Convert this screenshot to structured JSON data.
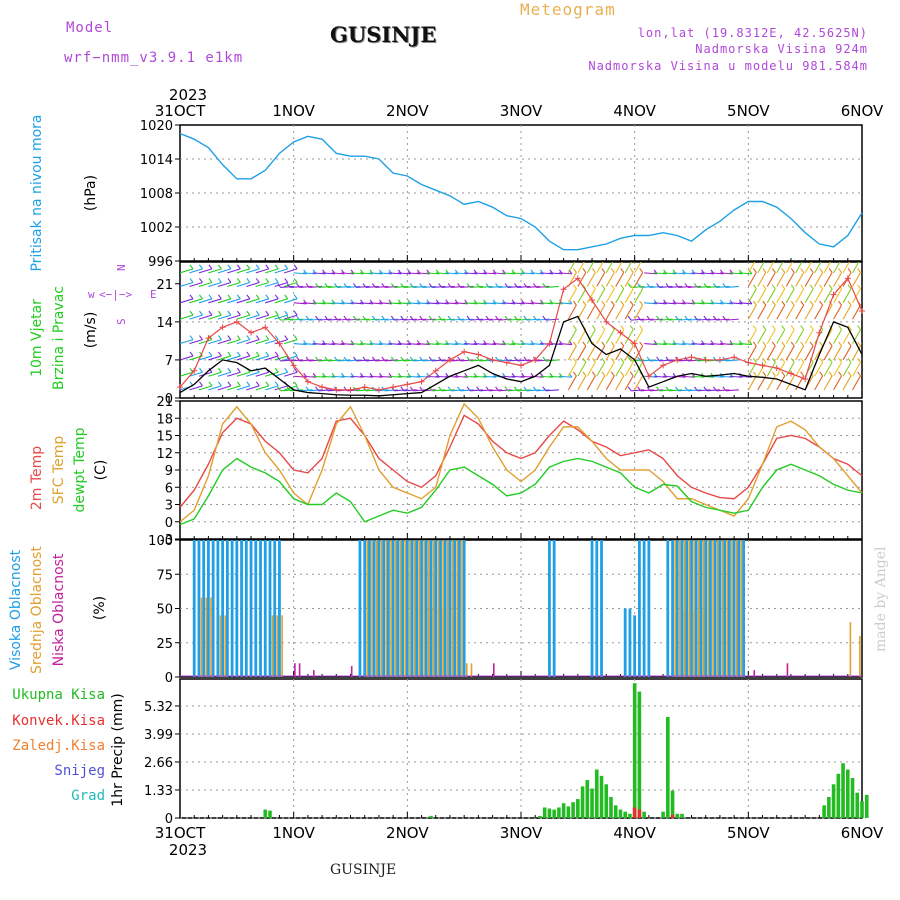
{
  "header": {
    "model_label": "Model",
    "model_name": "wrf−nmm_v3.9.1  e1km",
    "title": "GUSINJE",
    "product": "Meteogram",
    "lonlat": "lon,lat (19.8312E, 42.5625N)",
    "elevation": "Nadmorska Visina 924m",
    "model_elevation": "Nadmorska Visina u modelu 981.584m",
    "watermark": "made by Angel",
    "footer": "GUSINJE",
    "year": "2023"
  },
  "colors": {
    "pressure": "#1ea0e6",
    "wind_text": "#22cc22",
    "temp2m": "#e84848",
    "sfc": "#e0a030",
    "dewpt": "#22cc22",
    "high_cloud": "#1e9fe6",
    "mid_cloud": "#e0a030",
    "low_cloud": "#c0209a",
    "total_precip": "#22bb22",
    "conv_precip": "#e83030",
    "frozen_precip": "#f08030",
    "snow": "#5050d8",
    "graupel": "#22b8b8",
    "dir_label": "#b048d8",
    "header_purple": "#b048d8"
  },
  "chart_data": [
    {
      "id": "pressure",
      "type": "line",
      "ylabel": [
        "Pritisak na nivou mora",
        "(hPa)"
      ],
      "x_ticks": [
        "31OCT",
        "1NOV",
        "2NOV",
        "3NOV",
        "4NOV",
        "5NOV",
        "6NOV"
      ],
      "ylim": [
        996,
        1020
      ],
      "yticks": [
        996,
        1002,
        1008,
        1014,
        1020
      ],
      "x": [
        0,
        3,
        6,
        9,
        12,
        15,
        18,
        21,
        24,
        27,
        30,
        33,
        36,
        39,
        42,
        45,
        48,
        51,
        54,
        57,
        60,
        63,
        66,
        69,
        72,
        75,
        78,
        81,
        84,
        87,
        90,
        93,
        96,
        99,
        102,
        105,
        108,
        111,
        114,
        117,
        120,
        123,
        126,
        129,
        132,
        135,
        138,
        141,
        144
      ],
      "series": [
        {
          "name": "",
          "values": [
            1018.5,
            1017.5,
            1016,
            1013,
            1010.5,
            1010.5,
            1012,
            1015,
            1017,
            1018,
            1017.5,
            1015,
            1014.5,
            1014.5,
            1014,
            1011.5,
            1011,
            1009.5,
            1008.5,
            1007.5,
            1006,
            1006.5,
            1005.5,
            1004,
            1003.5,
            1002,
            999.5,
            998,
            998,
            998.5,
            999,
            1000,
            1000.5,
            1000.5,
            1001,
            1000.5,
            999.5,
            1001.5,
            1003,
            1005,
            1006.5,
            1006.5,
            1005.5,
            1003.5,
            1001,
            999,
            998.5,
            1000.5,
            1004.5
          ]
        }
      ]
    },
    {
      "id": "wind",
      "type": "line",
      "ylabel": [
        "10m Vjetar",
        "Brzina i Pravac",
        "(m/s)"
      ],
      "direction_legend": [
        "w",
        "<−|−>",
        "E",
        "N",
        "S"
      ],
      "ylim": [
        0,
        25
      ],
      "yticks": [
        0,
        7,
        14,
        21
      ],
      "x": [
        0,
        3,
        6,
        9,
        12,
        15,
        18,
        21,
        24,
        27,
        30,
        33,
        36,
        39,
        42,
        45,
        48,
        51,
        54,
        57,
        60,
        63,
        66,
        69,
        72,
        75,
        78,
        81,
        84,
        87,
        90,
        93,
        96,
        99,
        102,
        105,
        108,
        111,
        114,
        117,
        120,
        123,
        126,
        129,
        132,
        135,
        138,
        141,
        144
      ],
      "series": [
        {
          "name": "",
          "values": [
            1,
            2.5,
            5,
            7,
            6.5,
            5,
            5.5,
            3.5,
            1.5,
            1,
            0.8,
            0.6,
            0.5,
            0.5,
            0.4,
            0.6,
            0.8,
            1,
            2.5,
            4,
            5,
            6,
            4.5,
            3.5,
            3,
            4,
            6,
            14,
            15,
            10,
            8,
            9,
            7,
            2,
            3,
            4,
            4.5,
            4,
            4.2,
            4.5,
            4,
            3.8,
            3.5,
            2.5,
            1.5,
            8,
            14,
            13,
            8
          ]
        },
        {
          "name": "",
          "values": [
            2,
            5,
            11,
            13,
            14,
            12,
            13,
            10,
            6,
            3,
            2,
            1.5,
            1.5,
            2,
            1.5,
            2,
            2.5,
            3,
            5,
            7,
            8.5,
            8,
            7,
            6.5,
            6,
            7,
            10,
            20,
            22,
            18,
            14,
            12,
            10,
            4,
            6,
            7,
            7.5,
            7,
            7,
            7.5,
            6.5,
            6,
            5.5,
            4.5,
            3.5,
            12,
            19,
            22,
            16
          ]
        }
      ],
      "barb_rows": [
        23,
        20.5,
        17.5,
        14.5,
        10,
        7,
        4,
        1.5
      ]
    },
    {
      "id": "temperature",
      "type": "line",
      "ylabel": [
        "2m Temp",
        "SFC Temp",
        "dewpt Temp",
        "(C)"
      ],
      "ylim": [
        -3,
        21
      ],
      "yticks": [
        -3,
        0,
        3,
        6,
        9,
        12,
        15,
        18,
        21
      ],
      "x": [
        0,
        3,
        6,
        9,
        12,
        15,
        18,
        21,
        24,
        27,
        30,
        33,
        36,
        39,
        42,
        45,
        48,
        51,
        54,
        57,
        60,
        63,
        66,
        69,
        72,
        75,
        78,
        81,
        84,
        87,
        90,
        93,
        96,
        99,
        102,
        105,
        108,
        111,
        114,
        117,
        120,
        123,
        126,
        129,
        132,
        135,
        138,
        141,
        144
      ],
      "series": [
        {
          "name": "2m Temp",
          "values": [
            2.5,
            5.5,
            10,
            15.5,
            18,
            17,
            14,
            12,
            9,
            8.5,
            11,
            17.5,
            18,
            15,
            11,
            9,
            7,
            6,
            8,
            13,
            18.5,
            17,
            14,
            12,
            11,
            12,
            15,
            17.5,
            16,
            14,
            13,
            11.5,
            12,
            12.5,
            11,
            8,
            6,
            5,
            4.2,
            4,
            6,
            10,
            14.5,
            15,
            14.5,
            13,
            11,
            10,
            8
          ]
        },
        {
          "name": "SFC Temp",
          "values": [
            0,
            2,
            8,
            17,
            20,
            17,
            12,
            9,
            5,
            3,
            9,
            17,
            20,
            15,
            9,
            6,
            5,
            4,
            6,
            15,
            20.5,
            18,
            13,
            9,
            7,
            9,
            13,
            16.5,
            16.5,
            14,
            11,
            9,
            9,
            9,
            7,
            4,
            4,
            3,
            2,
            1,
            4,
            10,
            16.5,
            17.5,
            16,
            13,
            11,
            8,
            5
          ]
        },
        {
          "name": "dewpt Temp",
          "values": [
            -0.5,
            0.5,
            4.5,
            9,
            11,
            9.5,
            8.5,
            7,
            4,
            3,
            3,
            5,
            3.5,
            0,
            1,
            2,
            1.5,
            2.5,
            5.5,
            9,
            9.5,
            8,
            6.5,
            4.5,
            5,
            6.5,
            9.5,
            10.5,
            11,
            10.5,
            9.5,
            8.5,
            6,
            5,
            6.5,
            6.2,
            3.5,
            2.5,
            2,
            1.5,
            2,
            6,
            9,
            10,
            9,
            8,
            6.5,
            5.5,
            5
          ]
        }
      ]
    },
    {
      "id": "cloud",
      "type": "bar",
      "ylabel": [
        "Visoka Oblacnost",
        "Srednja Oblacnost",
        "Niska Oblacnost",
        "(%)"
      ],
      "ylim": [
        0,
        100
      ],
      "yticks": [
        0,
        25,
        50,
        75,
        100
      ],
      "bars": [
        {
          "name": "Visoka Oblacnost",
          "ranges": [
            [
              3,
              21,
              100
            ],
            [
              38,
              60,
              100
            ],
            [
              78,
              79,
              100
            ],
            [
              87,
              89,
              100
            ],
            [
              94,
              95,
              50
            ],
            [
              96,
              96,
              45
            ],
            [
              97,
              99,
              100
            ],
            [
              103,
              119,
              100
            ]
          ]
        },
        {
          "name": "Srednja Oblacnost",
          "ranges": [
            [
              4,
              6,
              58
            ],
            [
              8,
              9,
              45
            ],
            [
              19,
              21,
              45
            ],
            [
              39,
              59,
              100
            ],
            [
              52,
              56,
              50
            ],
            [
              60,
              61,
              10
            ],
            [
              104,
              118,
              100
            ],
            [
              106,
              110,
              48
            ],
            [
              141,
              141,
              40
            ],
            [
              143,
              143,
              30
            ]
          ]
        },
        {
          "name": "Niska Oblacnost",
          "ranges": [
            [
              24,
              24,
              10
            ],
            [
              25,
              25,
              10
            ],
            [
              28,
              28,
              5
            ],
            [
              36,
              36,
              8
            ],
            [
              66,
              66,
              10
            ],
            [
              121,
              121,
              5
            ],
            [
              128,
              128,
              10
            ]
          ]
        }
      ]
    },
    {
      "id": "precip",
      "type": "bar",
      "ylabel": [
        "Ukupna Kisa",
        "Konvek.Kisa",
        "Zaledj.Kisa",
        "Snijeg",
        "Grad",
        "1hr Precip (mm)"
      ],
      "ylim": [
        0,
        6.6
      ],
      "yticks": [
        0,
        1.33,
        2.66,
        3.99,
        5.32
      ],
      "bars": [
        {
          "name": "Ukupna Kisa",
          "points": [
            [
              18,
              0.4
            ],
            [
              19,
              0.35
            ],
            [
              53,
              0.1
            ],
            [
              76,
              0.1
            ],
            [
              77,
              0.5
            ],
            [
              78,
              0.45
            ],
            [
              79,
              0.4
            ],
            [
              80,
              0.5
            ],
            [
              81,
              0.7
            ],
            [
              82,
              0.55
            ],
            [
              83,
              0.75
            ],
            [
              84,
              0.9
            ],
            [
              85,
              1.5
            ],
            [
              86,
              1.8
            ],
            [
              87,
              1.4
            ],
            [
              88,
              2.3
            ],
            [
              89,
              2.0
            ],
            [
              90,
              1.6
            ],
            [
              91,
              1.0
            ],
            [
              92,
              0.6
            ],
            [
              93,
              0.4
            ],
            [
              94,
              0.3
            ],
            [
              95,
              0.2
            ],
            [
              96,
              6.4
            ],
            [
              97,
              6.0
            ],
            [
              98,
              0.3
            ],
            [
              102,
              0.3
            ],
            [
              103,
              4.8
            ],
            [
              104,
              1.3
            ],
            [
              105,
              0.2
            ],
            [
              106,
              0.2
            ],
            [
              136,
              0.6
            ],
            [
              137,
              1.0
            ],
            [
              138,
              1.6
            ],
            [
              139,
              2.1
            ],
            [
              140,
              2.6
            ],
            [
              141,
              2.3
            ],
            [
              142,
              1.9
            ],
            [
              143,
              1.2
            ],
            [
              144,
              0.8
            ],
            [
              145,
              1.1
            ]
          ]
        },
        {
          "name": "Konvek.Kisa",
          "points": [
            [
              96,
              0.5
            ],
            [
              97,
              0.4
            ],
            [
              104,
              0.15
            ]
          ]
        }
      ]
    }
  ]
}
